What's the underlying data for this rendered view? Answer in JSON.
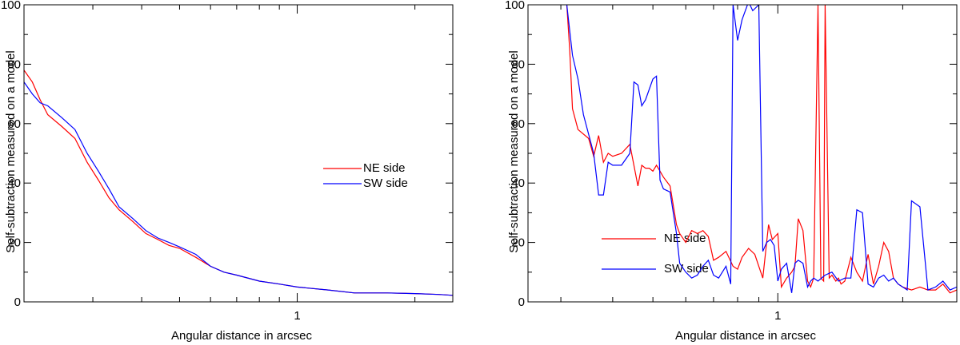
{
  "chart_data": [
    {
      "type": "line",
      "xscale": "log",
      "xlim": [
        0.2,
        2.5
      ],
      "ylim": [
        0,
        100
      ],
      "yticks": [
        0,
        20,
        40,
        60,
        80,
        100
      ],
      "xticks": [
        {
          "value": 1,
          "label": "1"
        }
      ],
      "xlabel": "Angular distance in arcsec",
      "ylabel": "Self-subtraction measured on a model",
      "legend_position": "center-right",
      "series": [
        {
          "name": "NE side",
          "color": "#ff0000",
          "x": [
            0.2,
            0.21,
            0.22,
            0.23,
            0.25,
            0.27,
            0.29,
            0.31,
            0.33,
            0.35,
            0.38,
            0.41,
            0.44,
            0.47,
            0.5,
            0.55,
            0.6,
            0.65,
            0.7,
            0.8,
            0.9,
            1.0,
            1.2,
            1.4,
            1.7,
            2.0,
            2.3,
            2.5
          ],
          "y": [
            78,
            74,
            68,
            63,
            59,
            55,
            47,
            41,
            35,
            31,
            27,
            23,
            21,
            19,
            18,
            15,
            12,
            10,
            9,
            7,
            6,
            5,
            4,
            3,
            3,
            2.8,
            2.5,
            2.2
          ]
        },
        {
          "name": "SW side",
          "color": "#0000ff",
          "x": [
            0.2,
            0.21,
            0.22,
            0.23,
            0.25,
            0.27,
            0.29,
            0.31,
            0.33,
            0.35,
            0.38,
            0.41,
            0.44,
            0.47,
            0.5,
            0.55,
            0.6,
            0.65,
            0.7,
            0.8,
            0.9,
            1.0,
            1.2,
            1.4,
            1.7,
            2.0,
            2.3,
            2.5
          ],
          "y": [
            74,
            70,
            67,
            66,
            62,
            58,
            50,
            44,
            38,
            32,
            28,
            24,
            21.5,
            20,
            18.5,
            16,
            12,
            10,
            9,
            7,
            6,
            5,
            4,
            3,
            3,
            2.8,
            2.5,
            2.2
          ]
        }
      ]
    },
    {
      "type": "line",
      "xscale": "log",
      "xlim": [
        0.25,
        2.7
      ],
      "ylim": [
        0,
        100
      ],
      "yticks": [
        0,
        20,
        40,
        60,
        80,
        100
      ],
      "xticks": [
        {
          "value": 1,
          "label": "1"
        }
      ],
      "xlabel": "Angular distance in arcsec",
      "ylabel": "Self-subtraction measured on a model",
      "legend_position": "bottom-left",
      "series": [
        {
          "name": "NE side",
          "color": "#ff0000",
          "x": [
            0.31,
            0.315,
            0.32,
            0.33,
            0.35,
            0.36,
            0.37,
            0.38,
            0.39,
            0.4,
            0.42,
            0.44,
            0.46,
            0.47,
            0.48,
            0.49,
            0.5,
            0.51,
            0.52,
            0.53,
            0.55,
            0.57,
            0.58,
            0.6,
            0.62,
            0.64,
            0.66,
            0.68,
            0.7,
            0.72,
            0.75,
            0.78,
            0.8,
            0.82,
            0.85,
            0.88,
            0.9,
            0.92,
            0.95,
            0.97,
            1.0,
            1.02,
            1.05,
            1.08,
            1.1,
            1.12,
            1.15,
            1.18,
            1.2,
            1.22,
            1.25,
            1.27,
            1.29,
            1.3,
            1.33,
            1.35,
            1.38,
            1.4,
            1.42,
            1.45,
            1.5,
            1.55,
            1.6,
            1.65,
            1.7,
            1.75,
            1.8,
            1.85,
            1.9,
            1.95,
            2.0,
            2.1,
            2.2,
            2.3,
            2.4,
            2.5,
            2.6,
            2.7
          ],
          "y": [
            100,
            85,
            65,
            58,
            55,
            49,
            56,
            47,
            50,
            49,
            50,
            53,
            39,
            46,
            45,
            45,
            44,
            46,
            44,
            42,
            39,
            26,
            23,
            20,
            24,
            23,
            24,
            22,
            14,
            15,
            17,
            12,
            11,
            15,
            18,
            16,
            12,
            8,
            26,
            21,
            23,
            5,
            8,
            10,
            12,
            28,
            24,
            7,
            5,
            8,
            100,
            8,
            7,
            100,
            8,
            9,
            7,
            8,
            6,
            7,
            15,
            10,
            7,
            16,
            6,
            12,
            20,
            17,
            8,
            6,
            5,
            4,
            5,
            4,
            4,
            6,
            3,
            4
          ]
        },
        {
          "name": "SW side",
          "color": "#0000ff",
          "x": [
            0.31,
            0.32,
            0.33,
            0.34,
            0.36,
            0.37,
            0.38,
            0.39,
            0.4,
            0.42,
            0.44,
            0.45,
            0.46,
            0.47,
            0.48,
            0.5,
            0.51,
            0.52,
            0.53,
            0.55,
            0.57,
            0.58,
            0.6,
            0.62,
            0.64,
            0.66,
            0.68,
            0.7,
            0.72,
            0.75,
            0.77,
            0.78,
            0.8,
            0.82,
            0.85,
            0.87,
            0.9,
            0.92,
            0.94,
            0.96,
            0.98,
            1.0,
            1.02,
            1.05,
            1.08,
            1.1,
            1.12,
            1.15,
            1.18,
            1.2,
            1.22,
            1.25,
            1.3,
            1.35,
            1.4,
            1.45,
            1.5,
            1.55,
            1.6,
            1.65,
            1.7,
            1.75,
            1.8,
            1.85,
            1.9,
            1.95,
            2.0,
            2.05,
            2.1,
            2.2,
            2.3,
            2.4,
            2.5,
            2.6,
            2.7
          ],
          "y": [
            100,
            83,
            75,
            63,
            50,
            36,
            36,
            47,
            46,
            46,
            50,
            74,
            73,
            66,
            68,
            75,
            76,
            41,
            38,
            37,
            23,
            13,
            10,
            8,
            9,
            12,
            14,
            9,
            8,
            12,
            6,
            100,
            88,
            95,
            101,
            98,
            100,
            17,
            20,
            21,
            19,
            7,
            11,
            13,
            3,
            13,
            14,
            13,
            5,
            7,
            8,
            7,
            9,
            10,
            7,
            8,
            8,
            31,
            30,
            6,
            5,
            8,
            9,
            7,
            8,
            6,
            5,
            4,
            34,
            32,
            4,
            5,
            7,
            4,
            5
          ]
        }
      ]
    }
  ]
}
